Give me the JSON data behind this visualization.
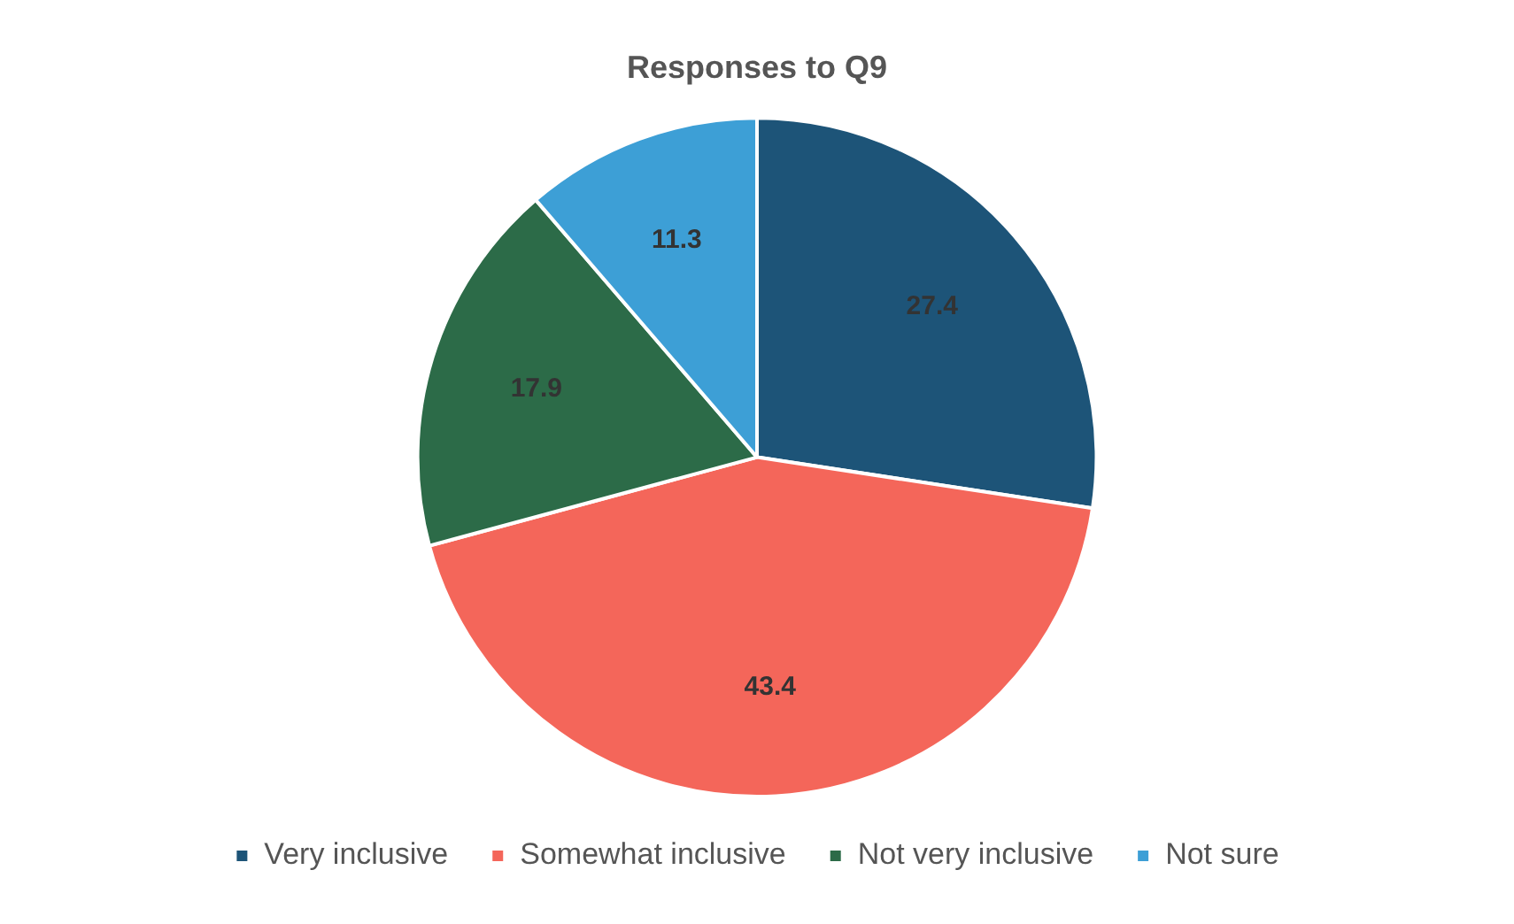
{
  "chart_data": {
    "type": "pie",
    "title": "Responses to Q9",
    "categories": [
      "Very inclusive",
      "Somewhat inclusive",
      "Not very inclusive",
      "Not sure"
    ],
    "values": [
      27.4,
      43.4,
      17.9,
      11.3
    ],
    "colors": [
      "#1d5478",
      "#f4665a",
      "#2c6b48",
      "#3d9fd6"
    ],
    "data_labels": true,
    "legend": "bottom"
  }
}
